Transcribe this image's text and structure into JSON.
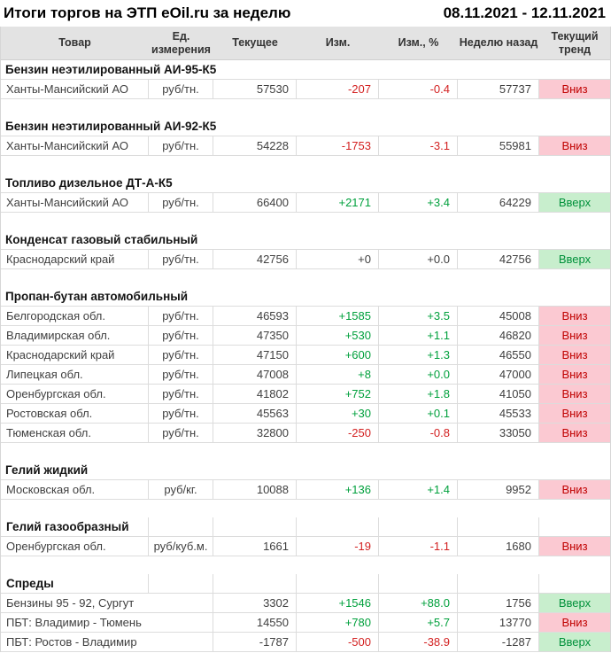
{
  "chart_data": {
    "type": "table",
    "title": "Итоги торгов на ЭТП eOil.ru за неделю",
    "period": "08.11.2021 - 12.11.2021",
    "columns": [
      "Товар",
      "Ед. измерения",
      "Текущее",
      "Изм.",
      "Изм., %",
      "Неделю назад",
      "Текущий тренд"
    ],
    "colors": {
      "positive_change": "#00A03C",
      "negative_change": "#D32121",
      "neutral_text": "#3F3F3F",
      "trend_up_bg": "#C8EECD",
      "trend_up_text": "#00913A",
      "trend_down_bg": "#FBC9D2",
      "trend_down_text": "#C00000",
      "header_bg": "#E3E3E3",
      "grid_border": "#DCDCDC"
    },
    "sections": [
      {
        "title": "Бензин неэтилированный АИ-95-К5",
        "bordered_title": false,
        "merged_unit": false,
        "rows": [
          {
            "product": "Ханты-Мансийский АО",
            "unit": "руб/тн.",
            "current": "57530",
            "change": "-207",
            "change_pct": "-0.4",
            "week_ago": "57737",
            "change_color": "negative",
            "trend": "Вниз",
            "trend_dir": "down"
          }
        ]
      },
      {
        "title": "Бензин неэтилированный АИ-92-К5",
        "bordered_title": false,
        "merged_unit": false,
        "rows": [
          {
            "product": "Ханты-Мансийский АО",
            "unit": "руб/тн.",
            "current": "54228",
            "change": "-1753",
            "change_pct": "-3.1",
            "week_ago": "55981",
            "change_color": "negative",
            "trend": "Вниз",
            "trend_dir": "down"
          }
        ]
      },
      {
        "title": "Топливо дизельное ДТ-А-К5",
        "bordered_title": false,
        "merged_unit": false,
        "rows": [
          {
            "product": "Ханты-Мансийский АО",
            "unit": "руб/тн.",
            "current": "66400",
            "change": "+2171",
            "change_pct": "+3.4",
            "week_ago": "64229",
            "change_color": "positive",
            "trend": "Вверх",
            "trend_dir": "up"
          }
        ]
      },
      {
        "title": "Конденсат газовый стабильный",
        "bordered_title": false,
        "merged_unit": false,
        "rows": [
          {
            "product": "Краснодарский край",
            "unit": "руб/тн.",
            "current": "42756",
            "change": "+0",
            "change_pct": "+0.0",
            "week_ago": "42756",
            "change_color": "neutral",
            "trend": "Вверх",
            "trend_dir": "up"
          }
        ]
      },
      {
        "title": "Пропан-бутан автомобильный",
        "bordered_title": false,
        "merged_unit": false,
        "rows": [
          {
            "product": "Белгородская обл.",
            "unit": "руб/тн.",
            "current": "46593",
            "change": "+1585",
            "change_pct": "+3.5",
            "week_ago": "45008",
            "change_color": "positive",
            "trend": "Вниз",
            "trend_dir": "down"
          },
          {
            "product": "Владимирская обл.",
            "unit": "руб/тн.",
            "current": "47350",
            "change": "+530",
            "change_pct": "+1.1",
            "week_ago": "46820",
            "change_color": "positive",
            "trend": "Вниз",
            "trend_dir": "down"
          },
          {
            "product": "Краснодарский край",
            "unit": "руб/тн.",
            "current": "47150",
            "change": "+600",
            "change_pct": "+1.3",
            "week_ago": "46550",
            "change_color": "positive",
            "trend": "Вниз",
            "trend_dir": "down"
          },
          {
            "product": "Липецкая обл.",
            "unit": "руб/тн.",
            "current": "47008",
            "change": "+8",
            "change_pct": "+0.0",
            "week_ago": "47000",
            "change_color": "positive",
            "trend": "Вниз",
            "trend_dir": "down"
          },
          {
            "product": "Оренбургская обл.",
            "unit": "руб/тн.",
            "current": "41802",
            "change": "+752",
            "change_pct": "+1.8",
            "week_ago": "41050",
            "change_color": "positive",
            "trend": "Вниз",
            "trend_dir": "down"
          },
          {
            "product": "Ростовская обл.",
            "unit": "руб/тн.",
            "current": "45563",
            "change": "+30",
            "change_pct": "+0.1",
            "week_ago": "45533",
            "change_color": "positive",
            "trend": "Вниз",
            "trend_dir": "down"
          },
          {
            "product": "Тюменская обл.",
            "unit": "руб/тн.",
            "current": "32800",
            "change": "-250",
            "change_pct": "-0.8",
            "week_ago": "33050",
            "change_color": "negative",
            "trend": "Вниз",
            "trend_dir": "down"
          }
        ]
      },
      {
        "title": "Гелий жидкий",
        "bordered_title": false,
        "merged_unit": false,
        "rows": [
          {
            "product": "Московская обл.",
            "unit": "руб/кг.",
            "current": "10088",
            "change": "+136",
            "change_pct": "+1.4",
            "week_ago": "9952",
            "change_color": "positive",
            "trend": "Вниз",
            "trend_dir": "down"
          }
        ]
      },
      {
        "title": "Гелий газообразный",
        "bordered_title": true,
        "merged_unit": false,
        "rows": [
          {
            "product": "Оренбургская обл.",
            "unit": "руб/куб.м.",
            "current": "1661",
            "change": "-19",
            "change_pct": "-1.1",
            "week_ago": "1680",
            "change_color": "negative",
            "trend": "Вниз",
            "trend_dir": "down"
          }
        ]
      },
      {
        "title": "Спреды",
        "bordered_title": true,
        "merged_unit": true,
        "rows": [
          {
            "product": "Бензины 95 - 92, Сургут",
            "current": "3302",
            "change": "+1546",
            "change_pct": "+88.0",
            "week_ago": "1756",
            "change_color": "positive",
            "trend": "Вверх",
            "trend_dir": "up"
          },
          {
            "product": "ПБТ: Владимир - Тюмень",
            "current": "14550",
            "change": "+780",
            "change_pct": "+5.7",
            "week_ago": "13770",
            "change_color": "positive",
            "trend": "Вниз",
            "trend_dir": "down"
          },
          {
            "product": "ПБТ: Ростов - Владимир",
            "current": "-1787",
            "change": "-500",
            "change_pct": "-38.9",
            "week_ago": "-1287",
            "change_color": "negative",
            "trend": "Вверх",
            "trend_dir": "up"
          }
        ]
      }
    ]
  }
}
